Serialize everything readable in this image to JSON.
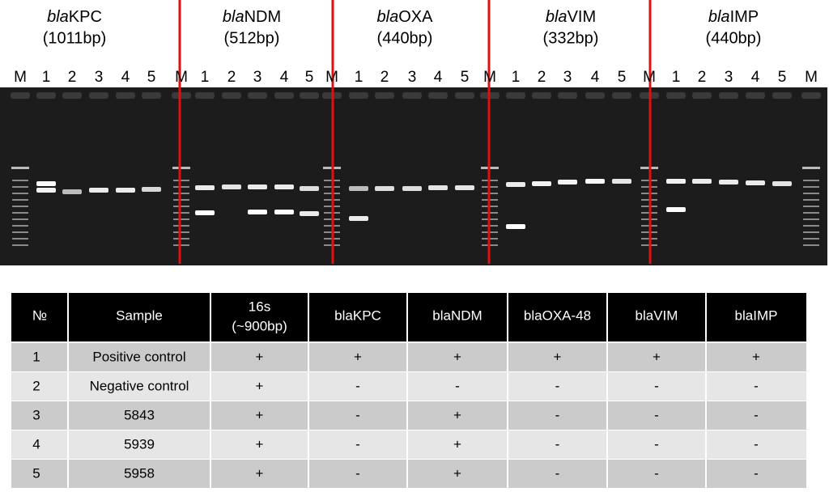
{
  "gel": {
    "panels": [
      {
        "prefix": "bla",
        "gene": "KPC",
        "size": "(1011bp)"
      },
      {
        "prefix": "bla",
        "gene": "NDM",
        "size": "(512bp)"
      },
      {
        "prefix": "bla",
        "gene": "OXA",
        "size": "(440bp)"
      },
      {
        "prefix": "bla",
        "gene": "VIM",
        "size": "(332bp)"
      },
      {
        "prefix": "bla",
        "gene": "IMP",
        "size": "(440bp)"
      }
    ],
    "lanes": [
      "M",
      "1",
      "2",
      "3",
      "4",
      "5",
      "M",
      "1",
      "2",
      "3",
      "4",
      "5",
      "M",
      "1",
      "2",
      "3",
      "4",
      "5",
      "M",
      "1",
      "2",
      "3",
      "4",
      "5",
      "M",
      "1",
      "2",
      "3",
      "4",
      "5",
      "M"
    ]
  },
  "table": {
    "header": [
      "№",
      "Sample",
      [
        "16s",
        "(~900bp)"
      ],
      "blaKPC",
      "blaNDM",
      "blaOXA-48",
      "blaVIM",
      "blaIMP"
    ],
    "rows": [
      [
        "1",
        "Positive control",
        "+",
        "+",
        "+",
        "+",
        "+",
        "+"
      ],
      [
        "2",
        "Negative control",
        "+",
        "-",
        "-",
        "-",
        "-",
        "-"
      ],
      [
        "3",
        "5843",
        "+",
        "-",
        "+",
        "-",
        "-",
        "-"
      ],
      [
        "4",
        "5939",
        "+",
        "-",
        "+",
        "-",
        "-",
        "-"
      ],
      [
        "5",
        "5958",
        "+",
        "-",
        "+",
        "-",
        "-",
        "-"
      ]
    ]
  }
}
